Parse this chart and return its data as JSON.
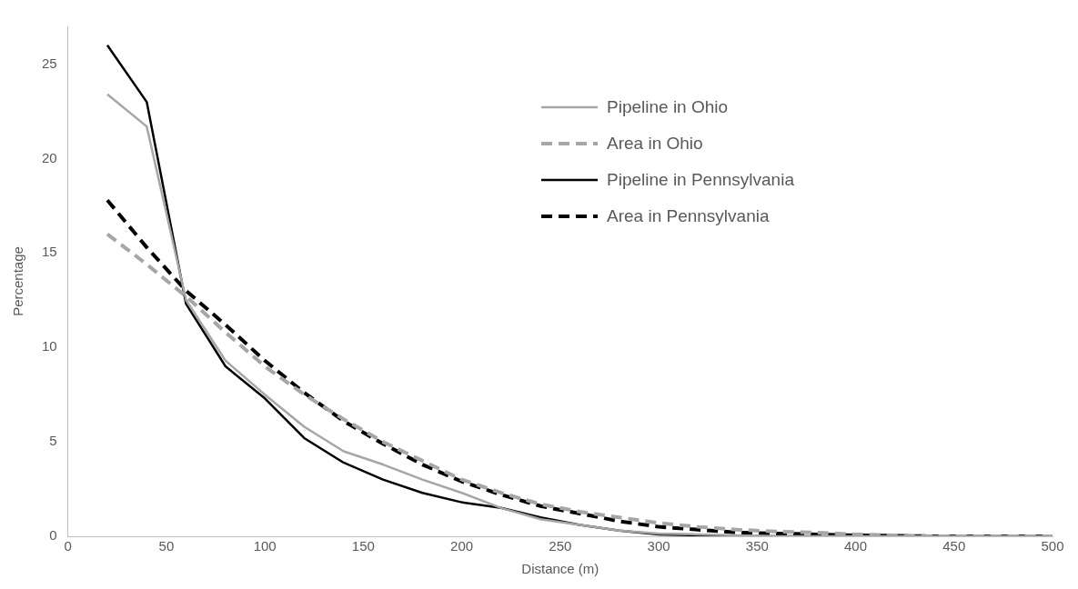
{
  "chart_data": {
    "type": "line",
    "xlabel": "Distance (m)",
    "ylabel": "Percentage",
    "x": [
      20,
      40,
      60,
      80,
      100,
      120,
      140,
      160,
      180,
      200,
      220,
      240,
      260,
      280,
      300,
      320,
      340,
      360,
      380,
      400,
      420,
      440,
      460,
      480,
      500
    ],
    "xlim": [
      0,
      500
    ],
    "xticks": [
      0,
      50,
      100,
      150,
      200,
      250,
      300,
      350,
      400,
      450,
      500
    ],
    "ylim": [
      0,
      27
    ],
    "yticks": [
      0,
      5,
      10,
      15,
      20,
      25
    ],
    "grid": false,
    "legend": "top right",
    "marker": "none",
    "series": [
      {
        "name": "Pipeline in Ohio",
        "color": "#a6a6a6",
        "line_style": "solid",
        "values": [
          23.4,
          21.7,
          12.5,
          9.3,
          7.5,
          5.8,
          4.5,
          3.8,
          3.0,
          2.3,
          1.5,
          0.9,
          0.6,
          0.3,
          0.15,
          0.1,
          0.05,
          0,
          0,
          0,
          0,
          0,
          0,
          0,
          0
        ]
      },
      {
        "name": "Area in Ohio",
        "color": "#a6a6a6",
        "line_style": "dashed",
        "values": [
          16,
          14.4,
          12.7,
          10.8,
          9.0,
          7.5,
          6.2,
          5.0,
          4.0,
          3.0,
          2.3,
          1.7,
          1.3,
          1.0,
          0.7,
          0.5,
          0.35,
          0.25,
          0.2,
          0.1,
          0.05,
          0,
          0,
          0,
          0
        ]
      },
      {
        "name": "Pipeline in Pennsylvania",
        "color": "#000000",
        "line_style": "solid",
        "values": [
          26,
          23,
          12.3,
          9.0,
          7.3,
          5.2,
          3.9,
          3.0,
          2.3,
          1.8,
          1.5,
          1.0,
          0.6,
          0.3,
          0.1,
          0.05,
          0,
          0,
          0,
          0,
          0,
          0,
          0,
          0,
          0
        ]
      },
      {
        "name": "Area in Pennsylvania",
        "color": "#000000",
        "line_style": "dashed",
        "values": [
          17.8,
          15.3,
          13.0,
          11.2,
          9.3,
          7.6,
          6.1,
          4.9,
          3.8,
          2.9,
          2.2,
          1.6,
          1.2,
          0.8,
          0.5,
          0.35,
          0.2,
          0.15,
          0.1,
          0.05,
          0.03,
          0,
          0,
          0,
          0
        ]
      }
    ]
  }
}
